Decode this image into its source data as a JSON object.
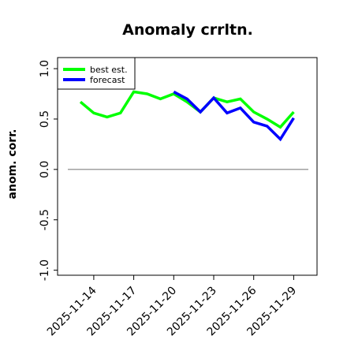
{
  "chart_data": {
    "type": "line",
    "title": "Anomaly crrltn.",
    "xlabel": "",
    "ylabel": "anom. corr.",
    "ylim": [
      -1.0,
      1.0
    ],
    "yticks": [
      -1.0,
      -0.5,
      0.0,
      0.5,
      1.0
    ],
    "ytick_labels": [
      "-1.0",
      "-0.5",
      "0.0",
      "0.5",
      "1.0"
    ],
    "x": [
      "2025-11-13",
      "2025-11-14",
      "2025-11-15",
      "2025-11-16",
      "2025-11-17",
      "2025-11-18",
      "2025-11-19",
      "2025-11-20",
      "2025-11-21",
      "2025-11-22",
      "2025-11-23",
      "2025-11-24",
      "2025-11-25",
      "2025-11-26",
      "2025-11-27",
      "2025-11-28",
      "2025-11-29"
    ],
    "xticks": [
      "2025-11-14",
      "2025-11-17",
      "2025-11-20",
      "2025-11-23",
      "2025-11-26",
      "2025-11-29"
    ],
    "xtick_colors": [
      "#000000",
      "#000000",
      "#228b22",
      "#000000",
      "#000000",
      "#000000"
    ],
    "reference_line": 0.0,
    "grid": false,
    "legend_position": "top-left",
    "series": [
      {
        "name": "best est.",
        "color": "#00ff00",
        "values": [
          0.67,
          0.56,
          0.52,
          0.56,
          0.77,
          0.75,
          0.7,
          0.75,
          0.67,
          0.57,
          0.71,
          0.67,
          0.7,
          0.57,
          0.5,
          0.42,
          0.57
        ]
      },
      {
        "name": "forecast",
        "color": "#0000ff",
        "values": [
          null,
          null,
          null,
          null,
          null,
          null,
          null,
          0.77,
          0.7,
          0.57,
          0.71,
          0.56,
          0.61,
          0.47,
          0.43,
          0.3,
          0.51
        ]
      }
    ]
  }
}
